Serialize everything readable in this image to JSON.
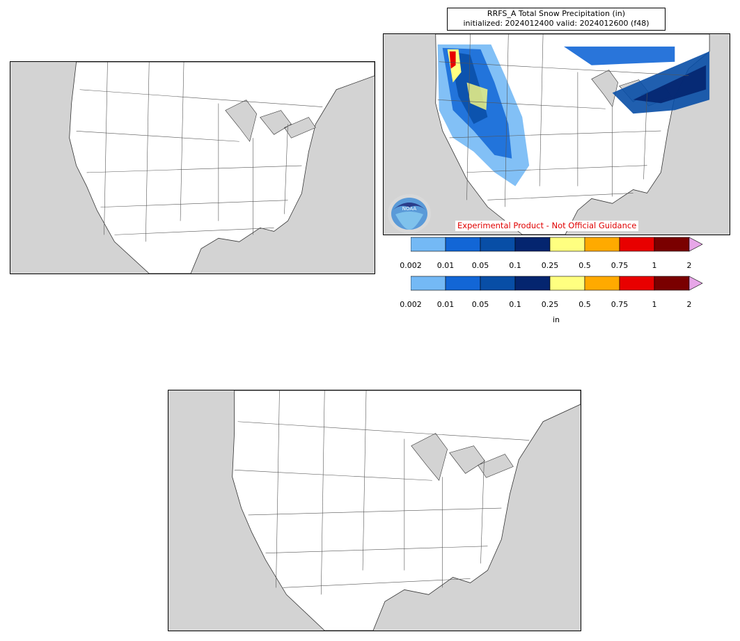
{
  "title": {
    "line1": "RRFS_A Total Snow Precipitation (in)",
    "line2": "initialized: 2024012400 valid: 2024012600 (f48)"
  },
  "disclaimer": "Experimental Product - Not Official Guidance",
  "logo": {
    "text": "NOAA"
  },
  "colorbar": {
    "unit": "in",
    "ticks": [
      "0.002",
      "0.01",
      "0.05",
      "0.1",
      "0.25",
      "0.5",
      "0.75",
      "1",
      "2"
    ],
    "colors": [
      "#74b9f5",
      "#1266d6",
      "#084ea6",
      "#04256f",
      "#ffff80",
      "#ffaa00",
      "#e80000",
      "#7a0000"
    ],
    "extend_color": "#e7a6e8"
  },
  "colors": {
    "ocean": "#d3d3d3",
    "land": "#ffffff",
    "boundary": "#555555"
  }
}
